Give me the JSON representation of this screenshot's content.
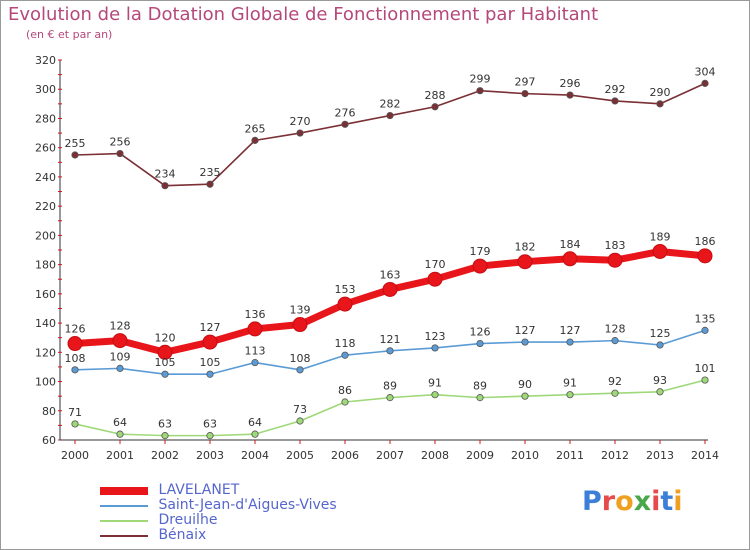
{
  "title": "Evolution de la Dotation Globale de Fonctionnement par Habitant",
  "subtitle": "(en € et par an)",
  "brand": {
    "text": "Proxiti",
    "colors": [
      "#3b7fd9",
      "#e64a4a",
      "#f0a020",
      "#4aa84a",
      "#e64a4a",
      "#3b7fd9",
      "#f0a020"
    ]
  },
  "chart_data": {
    "type": "line",
    "x": [
      "2000",
      "2001",
      "2002",
      "2003",
      "2004",
      "2005",
      "2006",
      "2007",
      "2008",
      "2009",
      "2010",
      "2011",
      "2012",
      "2013",
      "2014"
    ],
    "ylim": [
      60,
      320
    ],
    "yticks": [
      "60",
      "80",
      "100",
      "120",
      "140",
      "160",
      "180",
      "200",
      "220",
      "240",
      "260",
      "280",
      "300",
      "320"
    ],
    "grid": false,
    "legend": "bottom-left",
    "series": [
      {
        "name": "LAVELANET",
        "color": "#e8151b",
        "values": [
          126,
          128,
          120,
          127,
          136,
          139,
          153,
          163,
          170,
          179,
          182,
          184,
          183,
          189,
          186
        ]
      },
      {
        "name": "Saint-Jean-d'Aigues-Vives",
        "color": "#5b9bd5",
        "values": [
          108,
          109,
          105,
          105,
          113,
          108,
          118,
          121,
          123,
          126,
          127,
          127,
          128,
          125,
          135
        ]
      },
      {
        "name": "Dreuilhe",
        "color": "#9ed878",
        "values": [
          71,
          64,
          63,
          63,
          64,
          73,
          86,
          89,
          91,
          89,
          90,
          91,
          92,
          93,
          101
        ]
      },
      {
        "name": "Bénaix",
        "color": "#7a3035",
        "values": [
          255,
          256,
          234,
          235,
          265,
          270,
          276,
          282,
          288,
          299,
          297,
          296,
          292,
          290,
          304
        ]
      }
    ]
  }
}
